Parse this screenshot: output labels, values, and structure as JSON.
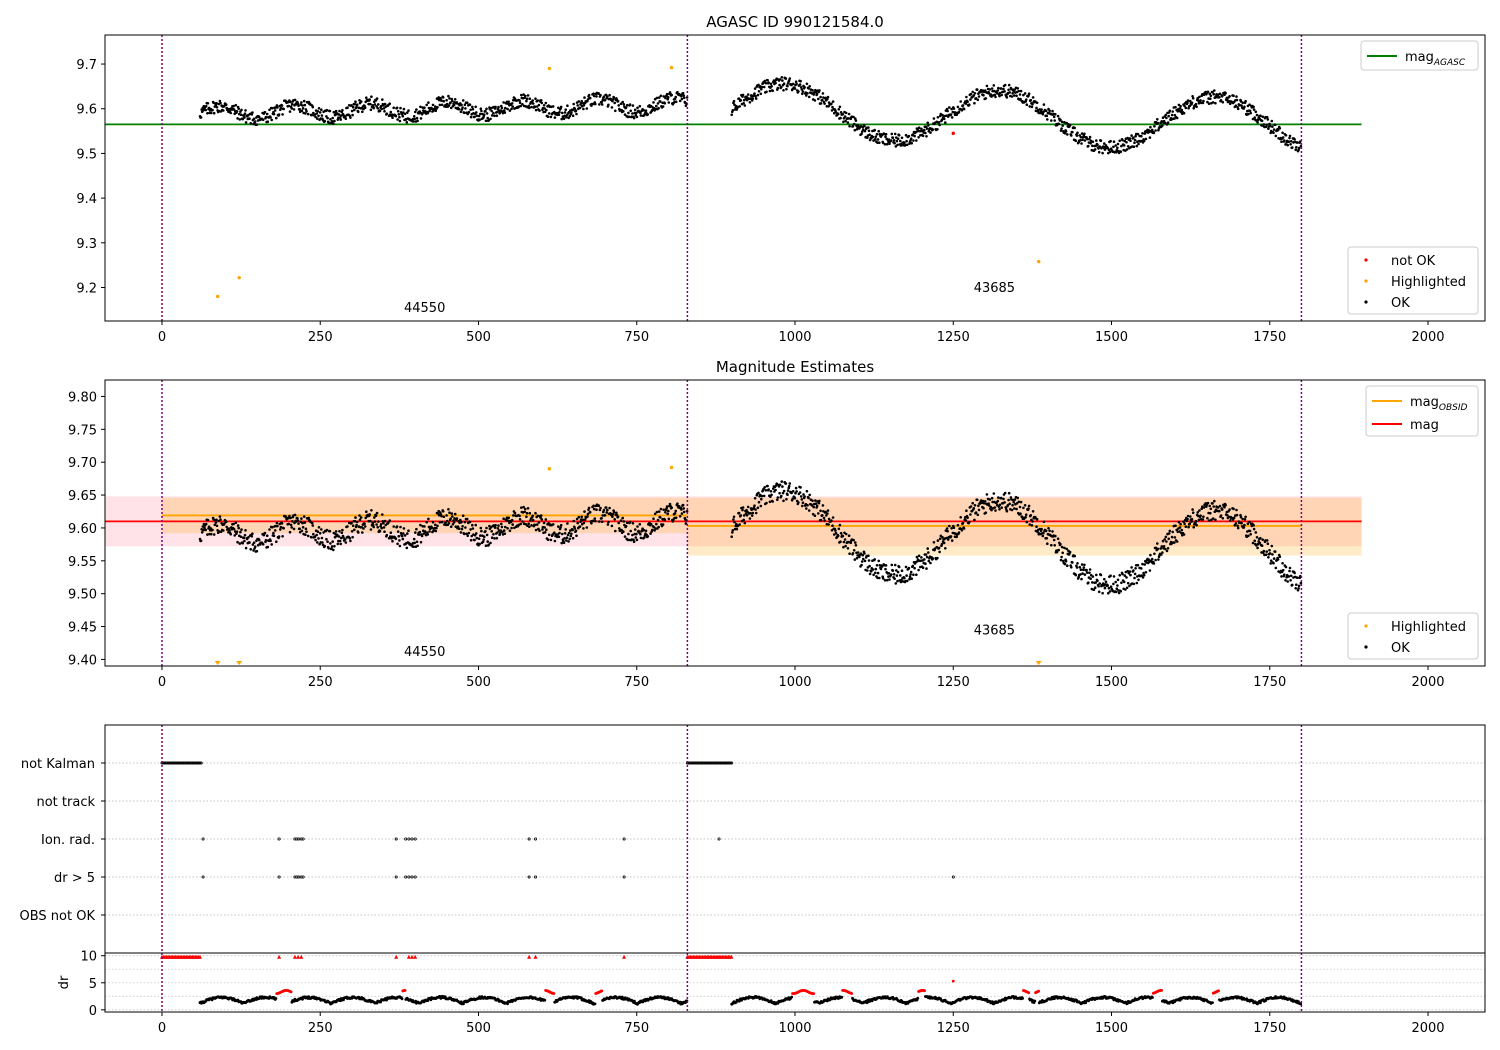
{
  "figure": {
    "title": "AGASC ID 990121584.0"
  },
  "chart_data": [
    {
      "type": "scatter",
      "title": "AGASC ID 990121584.0",
      "xlim": [
        -90,
        2090
      ],
      "ylim": [
        9.125,
        9.765
      ],
      "xticks": [
        0,
        250,
        500,
        750,
        1000,
        1250,
        1500,
        1750,
        2000
      ],
      "yticks": [
        9.2,
        9.3,
        9.4,
        9.5,
        9.6,
        9.7
      ],
      "ytick_decimals": 1,
      "obs_boundaries": [
        0,
        830,
        1800
      ],
      "obs_labels": [
        {
          "text": "44550",
          "x": 415,
          "y": 9.145
        },
        {
          "text": "43685",
          "x": 1315,
          "y": 9.19
        }
      ],
      "hlines": [
        {
          "name": "mag_AGASC",
          "y": 9.565,
          "x0": -90,
          "x1": 1895,
          "color": "#008000"
        }
      ],
      "legend_lines": [
        {
          "label": "mag",
          "sub": "AGASC",
          "color": "#008000"
        }
      ],
      "legend_points": [
        {
          "label": "not OK",
          "color": "#ff0000"
        },
        {
          "label": "Highlighted",
          "color": "#ffa500"
        },
        {
          "label": "OK",
          "color": "#000000"
        }
      ],
      "lc_segments": [
        {
          "x0": 60,
          "x1": 830,
          "y0": 9.59,
          "y1": 9.61,
          "amp": 0.015,
          "period": 120
        },
        {
          "x0": 900,
          "x1": 1800,
          "y0": 9.6,
          "y1": 9.56,
          "amp": 0.06,
          "period": 340
        }
      ],
      "highlighted": [
        {
          "x": 88,
          "y": 9.18
        },
        {
          "x": 122,
          "y": 9.222
        },
        {
          "x": 612,
          "y": 9.69
        },
        {
          "x": 805,
          "y": 9.692
        },
        {
          "x": 1385,
          "y": 9.258
        }
      ],
      "not_ok": [
        {
          "x": 1250,
          "y": 9.545
        }
      ]
    },
    {
      "type": "scatter",
      "title": "Magnitude Estimates",
      "xlim": [
        -90,
        2090
      ],
      "ylim": [
        9.39,
        9.825
      ],
      "xticks": [
        0,
        250,
        500,
        750,
        1000,
        1250,
        1500,
        1750,
        2000
      ],
      "yticks": [
        9.4,
        9.45,
        9.5,
        9.55,
        9.6,
        9.65,
        9.7,
        9.75,
        9.8
      ],
      "ytick_decimals": 2,
      "obs_boundaries": [
        0,
        830,
        1800
      ],
      "obs_labels": [
        {
          "text": "44550",
          "x": 415,
          "y": 9.405
        },
        {
          "text": "43685",
          "x": 1315,
          "y": 9.438
        }
      ],
      "bands": [
        {
          "x0": -90,
          "x1": 1895,
          "y0": 9.572,
          "y1": 9.648,
          "color": "#ffc0cb",
          "opacity": 0.45
        },
        {
          "x0": 0,
          "x1": 830,
          "y0": 9.592,
          "y1": 9.646,
          "color": "#ffa500",
          "opacity": 0.22
        },
        {
          "x0": 830,
          "x1": 1895,
          "y0": 9.558,
          "y1": 9.646,
          "color": "#ffa500",
          "opacity": 0.22
        }
      ],
      "hlines": [
        {
          "name": "mag_OBSID 44550",
          "y": 9.619,
          "x0": 0,
          "x1": 830,
          "color": "#ffa500"
        },
        {
          "name": "mag_OBSID 43685",
          "y": 9.603,
          "x0": 830,
          "x1": 1800,
          "color": "#ffa500"
        },
        {
          "name": "mag",
          "y": 9.61,
          "x0": -90,
          "x1": 1895,
          "color": "#ff0000"
        }
      ],
      "legend_lines": [
        {
          "label": "mag",
          "sub": "OBSID",
          "color": "#ffa500"
        },
        {
          "label": "mag",
          "sub": "",
          "color": "#ff0000"
        }
      ],
      "legend_points": [
        {
          "label": "Highlighted",
          "color": "#ffa500"
        },
        {
          "label": "OK",
          "color": "#000000"
        }
      ],
      "lc_segments": [
        {
          "x0": 60,
          "x1": 830,
          "y0": 9.59,
          "y1": 9.61,
          "amp": 0.015,
          "period": 120
        },
        {
          "x0": 900,
          "x1": 1800,
          "y0": 9.6,
          "y1": 9.56,
          "amp": 0.06,
          "period": 340
        }
      ],
      "highlighted": [
        {
          "x": 612,
          "y": 9.69
        },
        {
          "x": 805,
          "y": 9.692
        }
      ],
      "markers_bottom": [
        {
          "x": 88,
          "color": "#ffa500"
        },
        {
          "x": 122,
          "color": "#ffa500"
        },
        {
          "x": 1385,
          "color": "#ffa500"
        }
      ]
    },
    {
      "type": "scatter",
      "title": "",
      "xlim": [
        -90,
        2090
      ],
      "flag_rows": [
        "not Kalman",
        "not track",
        "Ion. rad.",
        "dr > 5",
        "OBS not OK"
      ],
      "obs_boundaries": [
        0,
        830,
        1800
      ],
      "flags": {
        "not Kalman": [
          [
            0,
            62
          ],
          [
            830,
            900
          ]
        ],
        "Ion. rad.": [
          65,
          185,
          210,
          213,
          216,
          220,
          223,
          370,
          385,
          390,
          395,
          400,
          580,
          590,
          730,
          880
        ],
        "dr > 5": [
          65,
          185,
          210,
          213,
          216,
          220,
          223,
          370,
          385,
          390,
          395,
          400,
          580,
          590,
          730,
          1250
        ]
      }
    },
    {
      "type": "scatter",
      "title": "",
      "xlim": [
        -90,
        2090
      ],
      "ylim": [
        -0.4,
        10.5
      ],
      "ylabel": "dr",
      "yticks": [
        0,
        5,
        10
      ],
      "xticks": [
        0,
        250,
        500,
        750,
        1000,
        1250,
        1500,
        1750,
        2000
      ],
      "obs_boundaries": [
        0,
        830,
        1800
      ],
      "capped_red": [
        [
          0,
          62
        ],
        [
          830,
          900
        ]
      ],
      "capped_red_points": [
        185,
        210,
        215,
        220,
        370,
        390,
        395,
        400,
        580,
        590,
        730
      ],
      "red_arcs": [
        [
          180,
          205
        ],
        [
          380,
          385
        ],
        [
          605,
          620
        ],
        [
          685,
          695
        ],
        [
          995,
          1030
        ],
        [
          1075,
          1090
        ],
        [
          1195,
          1205
        ],
        [
          1360,
          1370
        ],
        [
          1380,
          1385
        ],
        [
          1565,
          1580
        ],
        [
          1660,
          1670
        ]
      ],
      "dr_segments": [
        {
          "x0": 60,
          "x1": 830
        },
        {
          "x0": 900,
          "x1": 1800
        }
      ]
    }
  ]
}
